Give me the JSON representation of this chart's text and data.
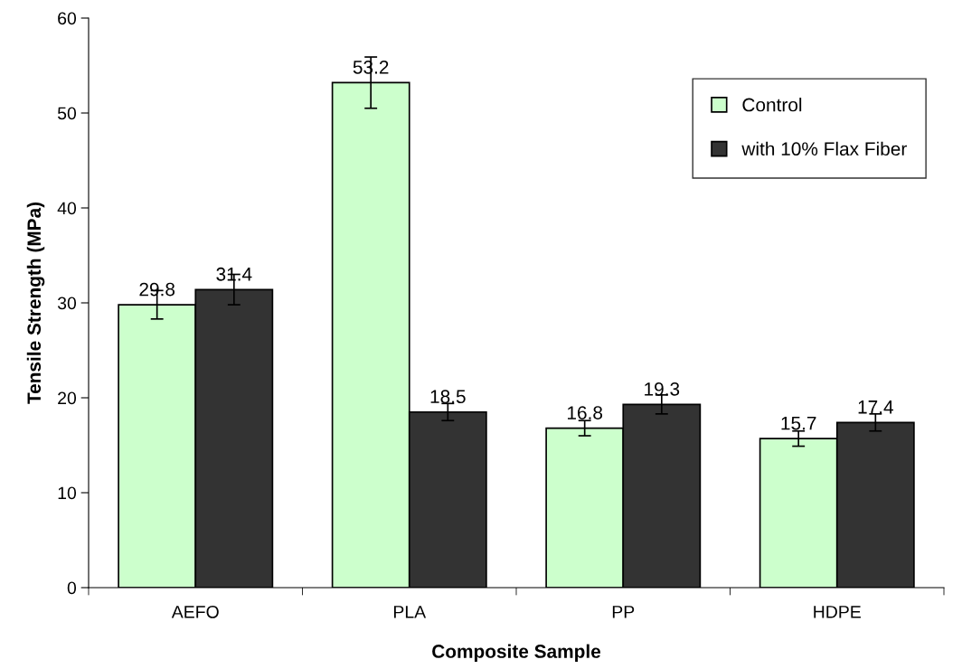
{
  "chart_data": {
    "type": "bar",
    "xlabel": "Composite Sample",
    "ylabel": "Tensile Strength (MPa)",
    "categories": [
      "AEFO",
      "PLA",
      "PP",
      "HDPE"
    ],
    "series": [
      {
        "name": "Control",
        "color": "#ccffcc",
        "values": [
          29.8,
          53.2,
          16.8,
          15.7
        ],
        "errors": [
          1.5,
          2.7,
          0.8,
          0.8
        ]
      },
      {
        "name": "with 10% Flax Fiber",
        "color": "#333333",
        "values": [
          31.4,
          18.5,
          19.3,
          17.4
        ],
        "errors": [
          1.6,
          0.9,
          1.0,
          0.9
        ]
      }
    ],
    "ylim": [
      0,
      60
    ],
    "yticks": [
      0,
      10,
      20,
      30,
      40,
      50,
      60
    ],
    "data_labels": true,
    "grid": false,
    "legend": "top right"
  }
}
